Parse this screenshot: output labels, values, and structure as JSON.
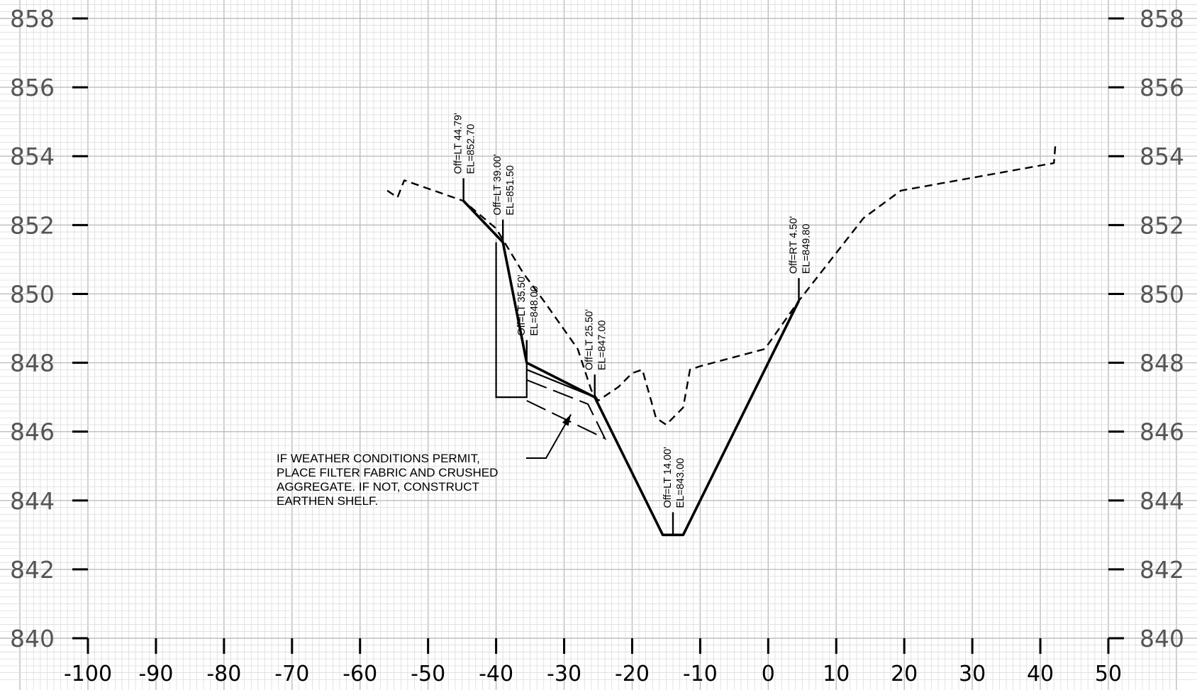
{
  "chart_data": {
    "type": "line",
    "title": "",
    "xlabel": "",
    "ylabel": "",
    "xlim": [
      -100,
      50
    ],
    "ylim": [
      840,
      858
    ],
    "x_ticks": [
      "-100",
      "-90",
      "-80",
      "-70",
      "-60",
      "-50",
      "-40",
      "-30",
      "-20",
      "-10",
      "0",
      "10",
      "20",
      "30",
      "40",
      "50"
    ],
    "y_ticks": [
      "858",
      "856",
      "854",
      "852",
      "850",
      "848",
      "846",
      "844",
      "842",
      "840"
    ],
    "grid": true,
    "series": [
      {
        "style": "solid",
        "points": [
          [
            -44.79,
            852.7
          ],
          [
            -39.0,
            851.5
          ],
          [
            -35.5,
            848.0
          ],
          [
            -25.5,
            847.0
          ],
          [
            -15.5,
            843.0
          ],
          [
            -12.5,
            843.0
          ],
          [
            4.5,
            849.8
          ]
        ]
      },
      {
        "style": "dashed",
        "points": [
          [
            -56,
            853.0
          ],
          [
            -54.5,
            852.8
          ],
          [
            -53.5,
            853.3
          ],
          [
            -44.8,
            852.7
          ],
          [
            -40,
            851.9
          ],
          [
            -36,
            850.6
          ],
          [
            -33,
            849.8
          ],
          [
            -28,
            848.4
          ],
          [
            -26,
            847.2
          ],
          [
            -25,
            846.9
          ],
          [
            -22,
            847.3
          ],
          [
            -20,
            847.7
          ],
          [
            -18.5,
            847.8
          ],
          [
            -16.5,
            846.4
          ],
          [
            -15,
            846.2
          ],
          [
            -12.5,
            846.7
          ],
          [
            -11.5,
            847.8
          ],
          [
            -10,
            847.9
          ],
          [
            -0.5,
            848.4
          ],
          [
            4.5,
            849.8
          ],
          [
            14,
            852.2
          ],
          [
            19.5,
            853.0
          ],
          [
            42,
            853.8
          ],
          [
            42.2,
            854.3
          ]
        ]
      }
    ],
    "structures": [
      {
        "name": "shelf-wall",
        "style": "thin",
        "points": [
          [
            -40,
            851.5
          ],
          [
            -40,
            847.0
          ],
          [
            -35.5,
            847.0
          ],
          [
            -35.5,
            848.0
          ]
        ]
      },
      {
        "name": "aggregate-layer",
        "style": "thin",
        "points": [
          [
            -35.5,
            847.8
          ],
          [
            -25.5,
            847.0
          ]
        ]
      },
      {
        "name": "filter-fabric",
        "style": "long-dash",
        "points": [
          [
            -35.5,
            847.5
          ],
          [
            -26.5,
            846.8
          ],
          [
            -24,
            845.8
          ],
          [
            -35.5,
            846.9
          ]
        ]
      }
    ],
    "point_labels": [
      {
        "x": -44.79,
        "y": 852.7,
        "line1": "Off=LT 44.79'",
        "line2": "EL=852.70"
      },
      {
        "x": -39.0,
        "y": 851.5,
        "line1": "Off=LT 39.00'",
        "line2": "EL=851.50"
      },
      {
        "x": -35.5,
        "y": 848.0,
        "line1": "Off=LT 35.50'",
        "line2": "EL=848.00"
      },
      {
        "x": -25.5,
        "y": 847.0,
        "line1": "Off=LT 25.50'",
        "line2": "EL=847.00"
      },
      {
        "x": -14.0,
        "y": 843.0,
        "line1": "Off=LT 14.00'",
        "line2": "EL=843.00"
      },
      {
        "x": 4.5,
        "y": 849.8,
        "line1": "Off=RT 4.50'",
        "line2": "EL=849.80"
      }
    ],
    "note": {
      "lines": [
        "IF WEATHER CONDITIONS PERMIT,",
        "PLACE FILTER FABRIC AND CRUSHED",
        "AGGREGATE.  IF NOT, CONSTRUCT",
        "EARTHEN SHELF."
      ],
      "arrow_to": [
        -29,
        846.5
      ]
    }
  }
}
